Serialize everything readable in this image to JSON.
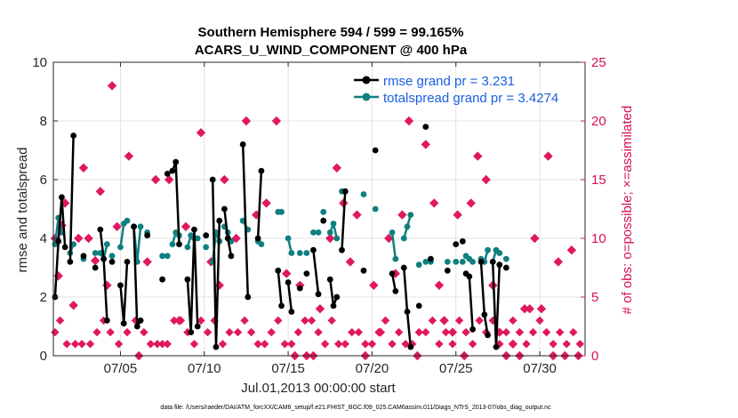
{
  "chart_data": {
    "type": "line",
    "title": "Southern Hemisphere 594 / 599 = 99.165%",
    "subtitle": "ACARS_U_WIND_COMPONENT @ 400 hPa",
    "xlabel": "Jul.01,2013 00:00:00 start",
    "ylabel": "rmse and totalspread",
    "ylabel_right": "# of obs: o=possible; ×=assimilated",
    "xlim": [
      0.5,
      32.2
    ],
    "ylim": [
      0,
      10
    ],
    "ylim_right": [
      0,
      25
    ],
    "x_ticks": [
      4.5,
      9.5,
      14.5,
      19.5,
      24.5,
      29.5
    ],
    "x_tick_labels": [
      "07/05",
      "07/10",
      "07/15",
      "07/20",
      "07/25",
      "07/30"
    ],
    "y_ticks": [
      0,
      2,
      4,
      6,
      8,
      10
    ],
    "y_ticks_right": [
      0,
      5,
      10,
      15,
      20,
      25
    ],
    "grid": true,
    "legend": {
      "position": "top-right",
      "entries": [
        "rmse grand pr = 3.231",
        "totalspread grand pr = 3.4274"
      ]
    },
    "footnote": "data file: /Users/raeder/DAI/ATM_forcXX/CAM6_setup/f.e21.FHIST_BGC.f09_025.CAM6assim.011/Diags_NTrS_2013-07/obs_diag_output.nc",
    "series": [
      {
        "name": "rmse",
        "color": "#000000",
        "segments": [
          [
            [
              0.6,
              2.0
            ],
            [
              0.8,
              3.9
            ],
            [
              1.0,
              5.4
            ],
            [
              1.2,
              3.7
            ]
          ],
          [
            [
              1.5,
              3.2
            ],
            [
              1.7,
              7.5
            ]
          ],
          [
            [
              2.3,
              3.4
            ]
          ],
          [
            [
              3.0,
              3.0
            ]
          ],
          [
            [
              3.3,
              4.3
            ],
            [
              3.5,
              3.3
            ],
            [
              3.7,
              1.2
            ]
          ],
          [
            [
              4.0,
              3.2
            ]
          ],
          [
            [
              4.5,
              2.4
            ],
            [
              4.7,
              1.1
            ],
            [
              4.9,
              3.2
            ]
          ],
          [
            [
              5.3,
              4.4
            ],
            [
              5.5,
              1.0
            ],
            [
              5.7,
              1.2
            ]
          ],
          [
            [
              6.1,
              4.1
            ]
          ],
          [
            [
              7.0,
              2.6
            ]
          ],
          [
            [
              7.3,
              6.2
            ]
          ],
          [
            [
              7.6,
              6.3
            ],
            [
              7.8,
              6.6
            ],
            [
              8.0,
              3.8
            ]
          ],
          [
            [
              8.5,
              2.6
            ],
            [
              8.7,
              0.8
            ],
            [
              8.9,
              4.3
            ],
            [
              9.1,
              1.0
            ]
          ],
          [
            [
              9.6,
              4.1
            ]
          ],
          [
            [
              10.0,
              6.0
            ],
            [
              10.2,
              0.3
            ],
            [
              10.4,
              4.6
            ]
          ],
          [
            [
              10.7,
              5.0
            ],
            [
              10.9,
              4.0
            ],
            [
              11.1,
              3.4
            ]
          ],
          [
            [
              11.8,
              7.2
            ],
            [
              12.1,
              2.0
            ]
          ],
          [
            [
              12.7,
              4.0
            ],
            [
              12.9,
              6.3
            ]
          ],
          [
            [
              13.9,
              2.9
            ],
            [
              14.1,
              1.7
            ]
          ],
          [
            [
              14.5,
              2.5
            ],
            [
              14.7,
              1.5
            ]
          ],
          [
            [
              15.2,
              2.3
            ]
          ],
          [
            [
              15.6,
              2.8
            ]
          ],
          [
            [
              16.0,
              3.6
            ],
            [
              16.3,
              2.1
            ]
          ],
          [
            [
              16.6,
              4.6
            ]
          ],
          [
            [
              17.0,
              2.6
            ],
            [
              17.2,
              1.7
            ],
            [
              17.4,
              2.0
            ]
          ],
          [
            [
              17.7,
              3.6
            ],
            [
              17.9,
              5.6
            ]
          ],
          [
            [
              19.0,
              2.9
            ]
          ],
          [
            [
              19.7,
              7.0
            ]
          ],
          [
            [
              20.7,
              2.8
            ],
            [
              20.9,
              2.2
            ]
          ],
          [
            [
              21.4,
              3.0
            ],
            [
              21.6,
              1.5
            ],
            [
              21.8,
              0.3
            ]
          ],
          [
            [
              22.3,
              1.7
            ]
          ],
          [
            [
              22.7,
              7.8
            ]
          ],
          [
            [
              23.0,
              3.3
            ]
          ],
          [
            [
              24.0,
              2.9
            ]
          ],
          [
            [
              24.5,
              3.8
            ]
          ],
          [
            [
              24.9,
              3.9
            ]
          ],
          [
            [
              25.1,
              2.8
            ],
            [
              25.3,
              2.7
            ],
            [
              25.5,
              0.9
            ]
          ],
          [
            [
              26.0,
              3.2
            ],
            [
              26.2,
              1.4
            ],
            [
              26.4,
              0.7
            ]
          ],
          [
            [
              26.7,
              3.2
            ],
            [
              26.9,
              0.3
            ],
            [
              27.1,
              3.1
            ]
          ],
          [
            [
              27.5,
              3.0
            ]
          ]
        ]
      },
      {
        "name": "totalspread",
        "color": "#0f7f7f",
        "segments": [
          [
            [
              0.6,
              3.8
            ],
            [
              0.8,
              4.7
            ],
            [
              1.0,
              4.2
            ]
          ],
          [
            [
              1.5,
              3.5
            ],
            [
              1.7,
              3.8
            ]
          ],
          [
            [
              2.3,
              3.3
            ]
          ],
          [
            [
              3.0,
              3.5
            ]
          ],
          [
            [
              3.3,
              3.5
            ],
            [
              3.5,
              3.3
            ],
            [
              3.7,
              3.8
            ]
          ],
          [
            [
              4.0,
              3.4
            ]
          ],
          [
            [
              4.5,
              3.7
            ],
            [
              4.7,
              4.5
            ],
            [
              4.9,
              4.6
            ]
          ],
          [
            [
              5.3,
              4.4
            ],
            [
              5.5,
              3.2
            ],
            [
              5.7,
              4.4
            ]
          ],
          [
            [
              6.1,
              4.2
            ]
          ],
          [
            [
              7.0,
              3.4
            ]
          ],
          [
            [
              7.3,
              3.4
            ]
          ],
          [
            [
              7.6,
              3.8
            ],
            [
              7.8,
              4.2
            ],
            [
              8.0,
              4.1
            ]
          ],
          [
            [
              8.5,
              3.7
            ],
            [
              8.7,
              4.1
            ],
            [
              8.9,
              4.0
            ],
            [
              9.1,
              4.0
            ]
          ],
          [
            [
              9.6,
              3.7
            ]
          ],
          [
            [
              10.0,
              3.2
            ],
            [
              10.2,
              4.2
            ],
            [
              10.4,
              3.9
            ]
          ],
          [
            [
              10.7,
              4.4
            ],
            [
              10.9,
              4.2
            ],
            [
              11.1,
              3.9
            ]
          ],
          [
            [
              11.8,
              4.6
            ],
            [
              12.1,
              4.3
            ]
          ],
          [
            [
              12.7,
              3.9
            ],
            [
              12.9,
              3.8
            ]
          ],
          [
            [
              13.9,
              4.9
            ],
            [
              14.1,
              4.9
            ]
          ],
          [
            [
              14.5,
              4.0
            ],
            [
              14.7,
              3.5
            ]
          ],
          [
            [
              15.2,
              3.5
            ]
          ],
          [
            [
              15.6,
              3.5
            ]
          ],
          [
            [
              16.0,
              4.2
            ],
            [
              16.3,
              4.2
            ]
          ],
          [
            [
              16.6,
              4.9
            ]
          ],
          [
            [
              17.0,
              4.2
            ],
            [
              17.2,
              4.5
            ],
            [
              17.4,
              4.0
            ]
          ],
          [
            [
              17.7,
              5.6
            ],
            [
              17.9,
              5.6
            ]
          ],
          [
            [
              19.0,
              5.5
            ]
          ],
          [
            [
              19.7,
              5.0
            ]
          ],
          [
            [
              20.7,
              4.2
            ],
            [
              20.9,
              3.3
            ]
          ],
          [
            [
              21.4,
              4.0
            ],
            [
              21.6,
              4.4
            ],
            [
              21.8,
              4.8
            ]
          ],
          [
            [
              22.3,
              3.1
            ]
          ],
          [
            [
              22.7,
              3.2
            ]
          ],
          [
            [
              23.0,
              3.2
            ]
          ],
          [
            [
              24.0,
              3.2
            ]
          ],
          [
            [
              24.5,
              3.2
            ]
          ],
          [
            [
              24.9,
              3.2
            ]
          ],
          [
            [
              25.1,
              3.4
            ],
            [
              25.3,
              3.3
            ],
            [
              25.5,
              3.2
            ]
          ],
          [
            [
              26.0,
              3.3
            ],
            [
              26.2,
              3.2
            ],
            [
              26.4,
              3.6
            ]
          ],
          [
            [
              26.7,
              3.2
            ],
            [
              26.9,
              3.6
            ],
            [
              27.1,
              3.5
            ]
          ],
          [
            [
              27.5,
              3.3
            ]
          ]
        ]
      }
    ],
    "obs_possible": [
      [
        0.6,
        10
      ],
      [
        0.8,
        6.8
      ],
      [
        1.0,
        11.1
      ],
      [
        1.2,
        13.0
      ],
      [
        1.7,
        4.3
      ],
      [
        2.0,
        10.0
      ],
      [
        2.3,
        16.0
      ],
      [
        2.6,
        10.0
      ],
      [
        3.0,
        8.1
      ],
      [
        3.3,
        14.0
      ],
      [
        3.7,
        6.0
      ],
      [
        4.0,
        23.0
      ],
      [
        4.3,
        11.0
      ],
      [
        5.0,
        17.0
      ],
      [
        5.6,
        0
      ],
      [
        6.1,
        8.0
      ],
      [
        6.6,
        15.0
      ],
      [
        7.4,
        15.0
      ],
      [
        8.0,
        3.0
      ],
      [
        8.4,
        11.0
      ],
      [
        9.3,
        19.0
      ],
      [
        9.9,
        8.0
      ],
      [
        10.4,
        6.0
      ],
      [
        10.7,
        15.0
      ],
      [
        11.4,
        10.0
      ],
      [
        12.0,
        20.0
      ],
      [
        12.6,
        12.0
      ],
      [
        13.2,
        13.0
      ],
      [
        13.8,
        20.0
      ],
      [
        14.4,
        7.0
      ],
      [
        14.9,
        0
      ],
      [
        15.2,
        6.0
      ],
      [
        15.6,
        0
      ],
      [
        16.0,
        0
      ],
      [
        16.4,
        4.0
      ],
      [
        17.0,
        10.0
      ],
      [
        17.4,
        16.0
      ],
      [
        17.8,
        13.0
      ],
      [
        18.2,
        8.0
      ],
      [
        18.6,
        12.0
      ],
      [
        19.1,
        0
      ],
      [
        19.6,
        6.0
      ],
      [
        20.0,
        2.0
      ],
      [
        20.5,
        10.0
      ],
      [
        20.9,
        7.0
      ],
      [
        21.3,
        12.0
      ],
      [
        21.7,
        20.0
      ],
      [
        22.2,
        0
      ],
      [
        22.7,
        18.0
      ],
      [
        23.2,
        13.0
      ],
      [
        23.5,
        6.0
      ],
      [
        23.8,
        3.0
      ],
      [
        24.3,
        2.0
      ],
      [
        24.6,
        12.0
      ],
      [
        25.0,
        0
      ],
      [
        25.4,
        13.0
      ],
      [
        25.8,
        17.0
      ],
      [
        26.3,
        15.0
      ],
      [
        26.7,
        6.0
      ],
      [
        27.1,
        2.0
      ],
      [
        27.5,
        0
      ],
      [
        27.9,
        1.0
      ],
      [
        28.3,
        0
      ],
      [
        28.6,
        4.0
      ],
      [
        28.9,
        4.0
      ],
      [
        29.2,
        10.0
      ],
      [
        29.6,
        4.0
      ],
      [
        30.0,
        17.0
      ],
      [
        30.3,
        0
      ],
      [
        30.6,
        8.0
      ],
      [
        31.0,
        0
      ],
      [
        31.4,
        9.0
      ],
      [
        31.8,
        0
      ]
    ],
    "obs_assimilated": [
      [
        0.6,
        2.0
      ],
      [
        0.9,
        3.0
      ],
      [
        1.3,
        1.0
      ],
      [
        1.8,
        1.0
      ],
      [
        2.2,
        1.0
      ],
      [
        2.7,
        1.0
      ],
      [
        3.1,
        2.0
      ],
      [
        3.5,
        3.0
      ],
      [
        3.9,
        2.0
      ],
      [
        4.4,
        1.0
      ],
      [
        4.9,
        2.0
      ],
      [
        5.4,
        3.0
      ],
      [
        5.9,
        2.0
      ],
      [
        6.3,
        1.0
      ],
      [
        6.7,
        1.0
      ],
      [
        7.0,
        1.0
      ],
      [
        7.3,
        1.0
      ],
      [
        7.7,
        3.0
      ],
      [
        8.1,
        3.0
      ],
      [
        8.5,
        2.0
      ],
      [
        8.9,
        1.0
      ],
      [
        9.3,
        3.0
      ],
      [
        9.7,
        2.0
      ],
      [
        10.1,
        3.0
      ],
      [
        10.6,
        1.0
      ],
      [
        11.0,
        2.0
      ],
      [
        11.5,
        2.0
      ],
      [
        11.9,
        3.0
      ],
      [
        12.3,
        2.0
      ],
      [
        12.7,
        1.0
      ],
      [
        13.1,
        1.0
      ],
      [
        13.5,
        2.0
      ],
      [
        13.9,
        3.0
      ],
      [
        14.3,
        1.0
      ],
      [
        14.7,
        1.0
      ],
      [
        15.1,
        2.0
      ],
      [
        15.5,
        3.0
      ],
      [
        15.9,
        3.0
      ],
      [
        16.3,
        2.0
      ],
      [
        16.7,
        1.0
      ],
      [
        17.1,
        3.0
      ],
      [
        17.5,
        1.0
      ],
      [
        17.9,
        1.0
      ],
      [
        18.3,
        2.0
      ],
      [
        18.7,
        2.0
      ],
      [
        19.1,
        1.0
      ],
      [
        19.5,
        1.0
      ],
      [
        19.9,
        2.0
      ],
      [
        20.3,
        3.0
      ],
      [
        20.7,
        1.0
      ],
      [
        21.1,
        2.0
      ],
      [
        21.5,
        1.0
      ],
      [
        21.9,
        1.0
      ],
      [
        22.3,
        2.0
      ],
      [
        22.7,
        2.0
      ],
      [
        23.1,
        3.0
      ],
      [
        23.5,
        1.0
      ],
      [
        23.9,
        2.0
      ],
      [
        24.3,
        1.0
      ],
      [
        24.7,
        3.0
      ],
      [
        25.1,
        2.0
      ],
      [
        25.5,
        1.0
      ],
      [
        25.9,
        3.0
      ],
      [
        26.3,
        2.0
      ],
      [
        26.7,
        3.0
      ],
      [
        27.1,
        1.0
      ],
      [
        27.5,
        2.0
      ],
      [
        27.9,
        3.0
      ],
      [
        28.3,
        2.0
      ],
      [
        28.7,
        1.0
      ],
      [
        29.1,
        2.0
      ],
      [
        29.5,
        3.0
      ],
      [
        29.9,
        2.0
      ],
      [
        30.3,
        1.0
      ],
      [
        30.7,
        2.0
      ],
      [
        31.1,
        1.0
      ],
      [
        31.5,
        2.0
      ],
      [
        31.9,
        1.0
      ]
    ]
  }
}
